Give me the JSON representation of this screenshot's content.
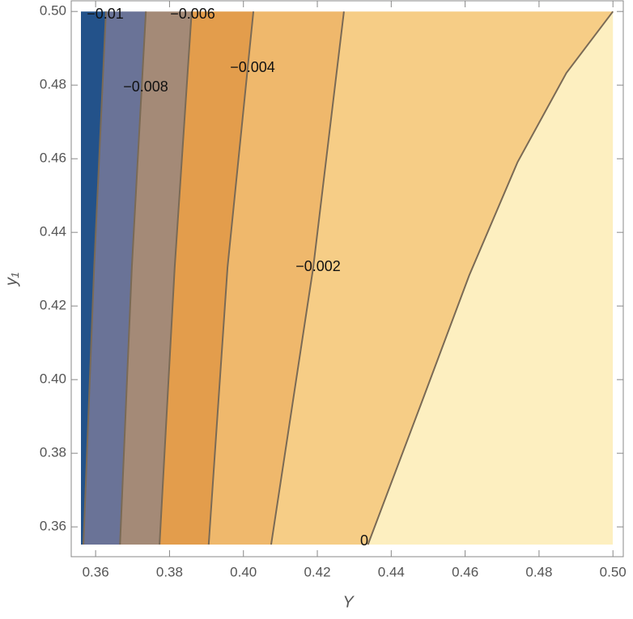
{
  "chart_data": {
    "type": "contour",
    "x_label": "Y",
    "y_label": "y₁",
    "xlim": [
      0.3534,
      0.5028
    ],
    "ylim": [
      0.3519,
      0.5029
    ],
    "xticks": [
      0.36,
      0.38,
      {
        "value": 0.4,
        "label": "0.40"
      },
      0.42,
      0.44,
      0.46,
      0.48,
      {
        "value": 0.5,
        "label": "0.50"
      }
    ],
    "yticks": [
      0.36,
      0.38,
      {
        "value": 0.4,
        "label": "0.40"
      },
      0.42,
      0.44,
      0.46,
      0.48,
      {
        "value": 0.5,
        "label": "0.50"
      }
    ],
    "line_color": "#7a6a55",
    "fill_colors": [
      "#23528a",
      "#6a7397",
      "#a48a77",
      "#e39d4c",
      "#efb86c",
      "#f6cd86",
      "#fdefc0"
    ],
    "levels": [
      -0.01,
      -0.008,
      -0.006,
      -0.004,
      -0.002,
      0
    ],
    "level_labels": [
      "−0.01",
      "−0.008",
      "−0.006",
      "−0.004",
      "−0.002",
      "0"
    ],
    "contours": [
      {
        "x": [
          0.3567,
          0.3596,
          0.3628
        ],
        "y": [
          0.3552,
          0.4305,
          0.5
        ]
      },
      {
        "x": [
          0.3666,
          0.3698,
          0.3736
        ],
        "y": [
          0.3552,
          0.4305,
          0.5
        ]
      },
      {
        "x": [
          0.3773,
          0.3814,
          0.386
        ],
        "y": [
          0.3552,
          0.4305,
          0.5
        ]
      },
      {
        "x": [
          0.3906,
          0.3957,
          0.4027
        ],
        "y": [
          0.3552,
          0.4305,
          0.5
        ]
      },
      {
        "x": [
          0.4075,
          0.4189,
          0.4272
        ],
        "y": [
          0.3552,
          0.4305,
          0.5
        ]
      },
      {
        "x": [
          0.4337,
          0.448,
          0.4611,
          0.4742,
          0.4874,
          0.5
        ],
        "y": [
          0.3552,
          0.3932,
          0.4283,
          0.4591,
          0.4833,
          0.5
        ]
      }
    ]
  }
}
